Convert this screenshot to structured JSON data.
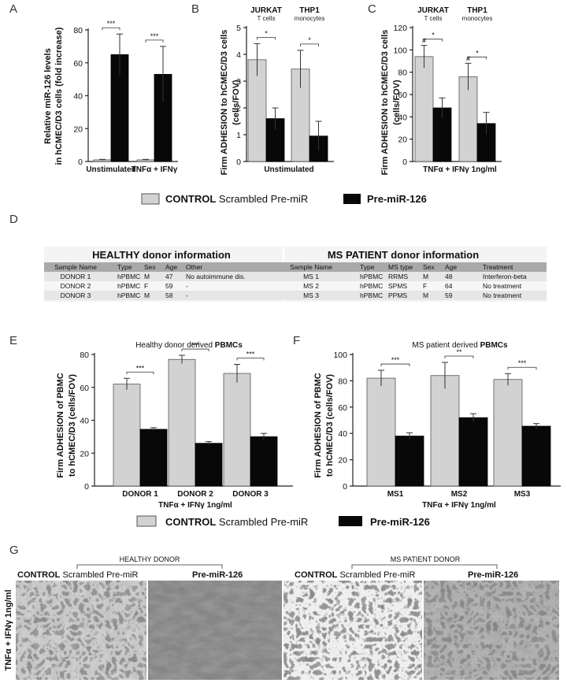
{
  "panel_labels": {
    "A": "A",
    "B": "B",
    "C": "C",
    "D": "D",
    "E": "E",
    "F": "F",
    "G": "G"
  },
  "legend_top": {
    "control_bold": "CONTROL",
    "control_rest": " Scrambled Pre-miR",
    "premir": "Pre-miR-126"
  },
  "legend_mid": {
    "control_bold": "CONTROL",
    "control_rest": " Scrambled Pre-miR",
    "premir": "Pre-miR-126"
  },
  "colors": {
    "control": "#d2d2d2",
    "premir": "#080808",
    "table_header": "#a9a9a9",
    "table_row_alt": "#e6e6e6"
  },
  "panel_a": {
    "ylabel_1": "Relative miR-126  levels",
    "ylabel_2": "in hCMEC/D3 cells (fold increase)",
    "ticks": [
      "0",
      "20",
      "40",
      "60",
      "80"
    ],
    "cat1": "Unstimulated",
    "cat2": "TNFα + IFNγ",
    "sig1": "***",
    "sig2": "***"
  },
  "panel_b": {
    "ylabel_1": "Firm ADHESION to hCMEC/D3 cells",
    "ylabel_2": "(cells/FOV)",
    "ticks": [
      "0",
      "1",
      "2",
      "3",
      "4",
      "5"
    ],
    "group1": "JURKAT",
    "group1_sub": "T cells",
    "group2": "THP1",
    "group2_sub": "monocytes",
    "xcat": "Unstimulated",
    "sig1": "*",
    "sig2": "*"
  },
  "panel_c": {
    "ylabel_1": "Firm ADHESION to hCMEC/D3 cells",
    "ylabel_2": "(cells/FOV)",
    "ticks": [
      "0",
      "20",
      "40",
      "60",
      "80",
      "100",
      "120"
    ],
    "group1": "JURKAT",
    "group1_sub": "T cells",
    "group2": "THP1",
    "group2_sub": "monocytes",
    "xcat": "TNFα  + IFNγ  1ng/ml",
    "sig1": "*",
    "sig2": "*",
    "hash1": "#",
    "hash2": "#"
  },
  "panel_e": {
    "title_pre": "Healthy donor derived ",
    "title_bold": "PBMCs",
    "ylabel_1": "Firm ADHESION of PBMC",
    "ylabel_2": "to hCMEC/D3 (cells/FOV)",
    "ticks": [
      "0",
      "20",
      "40",
      "60",
      "80"
    ],
    "cats": [
      "DONOR 1",
      "DONOR 2",
      "DONOR 3"
    ],
    "xcat": "TNFα  + IFNγ  1ng/ml",
    "sigs": [
      "***",
      "***",
      "***"
    ]
  },
  "panel_f": {
    "title_pre": "MS patient derived ",
    "title_bold": "PBMCs",
    "ylabel_1": "Firm ADHESION of PBMC",
    "ylabel_2": "to hCMEC/D3 (cells/FOV)",
    "ticks": [
      "0",
      "20",
      "40",
      "60",
      "80",
      "100"
    ],
    "cats": [
      "MS1",
      "MS2",
      "MS3"
    ],
    "xcat": "TNFα  + IFNγ  1ng/ml",
    "sigs": [
      "***",
      "**",
      "***"
    ]
  },
  "table": {
    "healthy_title": "HEALTHY donor information",
    "ms_title": "MS PATIENT donor information",
    "healthy_headers": [
      "Sample Name",
      "Type",
      "Sex",
      "Age",
      "Other"
    ],
    "ms_headers": [
      "Sample Name",
      "Type",
      "MS type",
      "Sex",
      "Age",
      "Treatment"
    ],
    "healthy_rows": [
      [
        "DONOR 1",
        "hPBMC",
        "M",
        "47",
        "No autoimmune dis."
      ],
      [
        "DONOR 2",
        "hPBMC",
        "F",
        "59",
        "-"
      ],
      [
        "DONOR 3",
        "hPBMC",
        "M",
        "58",
        "-"
      ]
    ],
    "ms_rows": [
      [
        "MS 1",
        "hPBMC",
        "RRMS",
        "M",
        "48",
        "Interferon-beta"
      ],
      [
        "MS 2",
        "hPBMC",
        "SPMS",
        "F",
        "64",
        "No treatment"
      ],
      [
        "MS 3",
        "hPBMC",
        "PPMS",
        "M",
        "59",
        "No treatment"
      ]
    ]
  },
  "panel_g": {
    "healthy_label": "HEALTHY DONOR",
    "ms_label": "MS PATIENT DONOR",
    "control_bold": "CONTROL",
    "control_rest": " Scrambled Pre-miR",
    "premir": "Pre-miR-126",
    "side_label": "TNFα + IFNγ  1ng/ml"
  },
  "chart_data": [
    {
      "panel": "A",
      "type": "bar",
      "ylabel": "Relative miR-126 levels in hCMEC/D3 cells (fold increase)",
      "categories": [
        "Unstimulated",
        "TNFα + IFNγ"
      ],
      "ylim": [
        0,
        80
      ],
      "series": [
        {
          "name": "CONTROL Scrambled Pre-miR",
          "values": [
            1,
            1
          ],
          "errors": [
            0.3,
            0.3
          ]
        },
        {
          "name": "Pre-miR-126",
          "values": [
            65,
            53
          ],
          "errors": [
            12.5,
            17
          ]
        }
      ]
    },
    {
      "panel": "B",
      "type": "bar",
      "ylabel": "Firm ADHESION to hCMEC/D3 cells (cells/FOV)",
      "categories": [
        "JURKAT",
        "THP1"
      ],
      "ylim": [
        0,
        5
      ],
      "series": [
        {
          "name": "CONTROL Scrambled Pre-miR",
          "values": [
            3.8,
            3.45
          ],
          "errors": [
            0.6,
            0.7
          ]
        },
        {
          "name": "Pre-miR-126",
          "values": [
            1.6,
            0.95
          ],
          "errors": [
            0.4,
            0.55
          ]
        }
      ]
    },
    {
      "panel": "C",
      "type": "bar",
      "ylabel": "Firm ADHESION to hCMEC/D3 cells (cells/FOV)",
      "categories": [
        "JURKAT",
        "THP1"
      ],
      "ylim": [
        0,
        120
      ],
      "series": [
        {
          "name": "CONTROL Scrambled Pre-miR",
          "values": [
            94,
            76
          ],
          "errors": [
            10,
            12
          ]
        },
        {
          "name": "Pre-miR-126",
          "values": [
            48,
            34
          ],
          "errors": [
            9,
            10
          ]
        }
      ]
    },
    {
      "panel": "E",
      "type": "bar",
      "ylabel": "Firm ADHESION of PBMC to hCMEC/D3 (cells/FOV)",
      "categories": [
        "DONOR 1",
        "DONOR 2",
        "DONOR 3"
      ],
      "ylim": [
        0,
        80
      ],
      "series": [
        {
          "name": "CONTROL Scrambled Pre-miR",
          "values": [
            62,
            77,
            68.5
          ],
          "errors": [
            3.5,
            2.5,
            5.5
          ]
        },
        {
          "name": "Pre-miR-126",
          "values": [
            34.5,
            26,
            30
          ],
          "errors": [
            1,
            1,
            2
          ]
        }
      ]
    },
    {
      "panel": "F",
      "type": "bar",
      "ylabel": "Firm ADHESION of PBMC to hCMEC/D3 (cells/FOV)",
      "categories": [
        "MS1",
        "MS2",
        "MS3"
      ],
      "ylim": [
        0,
        100
      ],
      "series": [
        {
          "name": "CONTROL Scrambled Pre-miR",
          "values": [
            82,
            84,
            81
          ],
          "errors": [
            6,
            10,
            4.5
          ]
        },
        {
          "name": "Pre-miR-126",
          "values": [
            38,
            52,
            45.5
          ],
          "errors": [
            2.5,
            3,
            2
          ]
        }
      ]
    }
  ]
}
